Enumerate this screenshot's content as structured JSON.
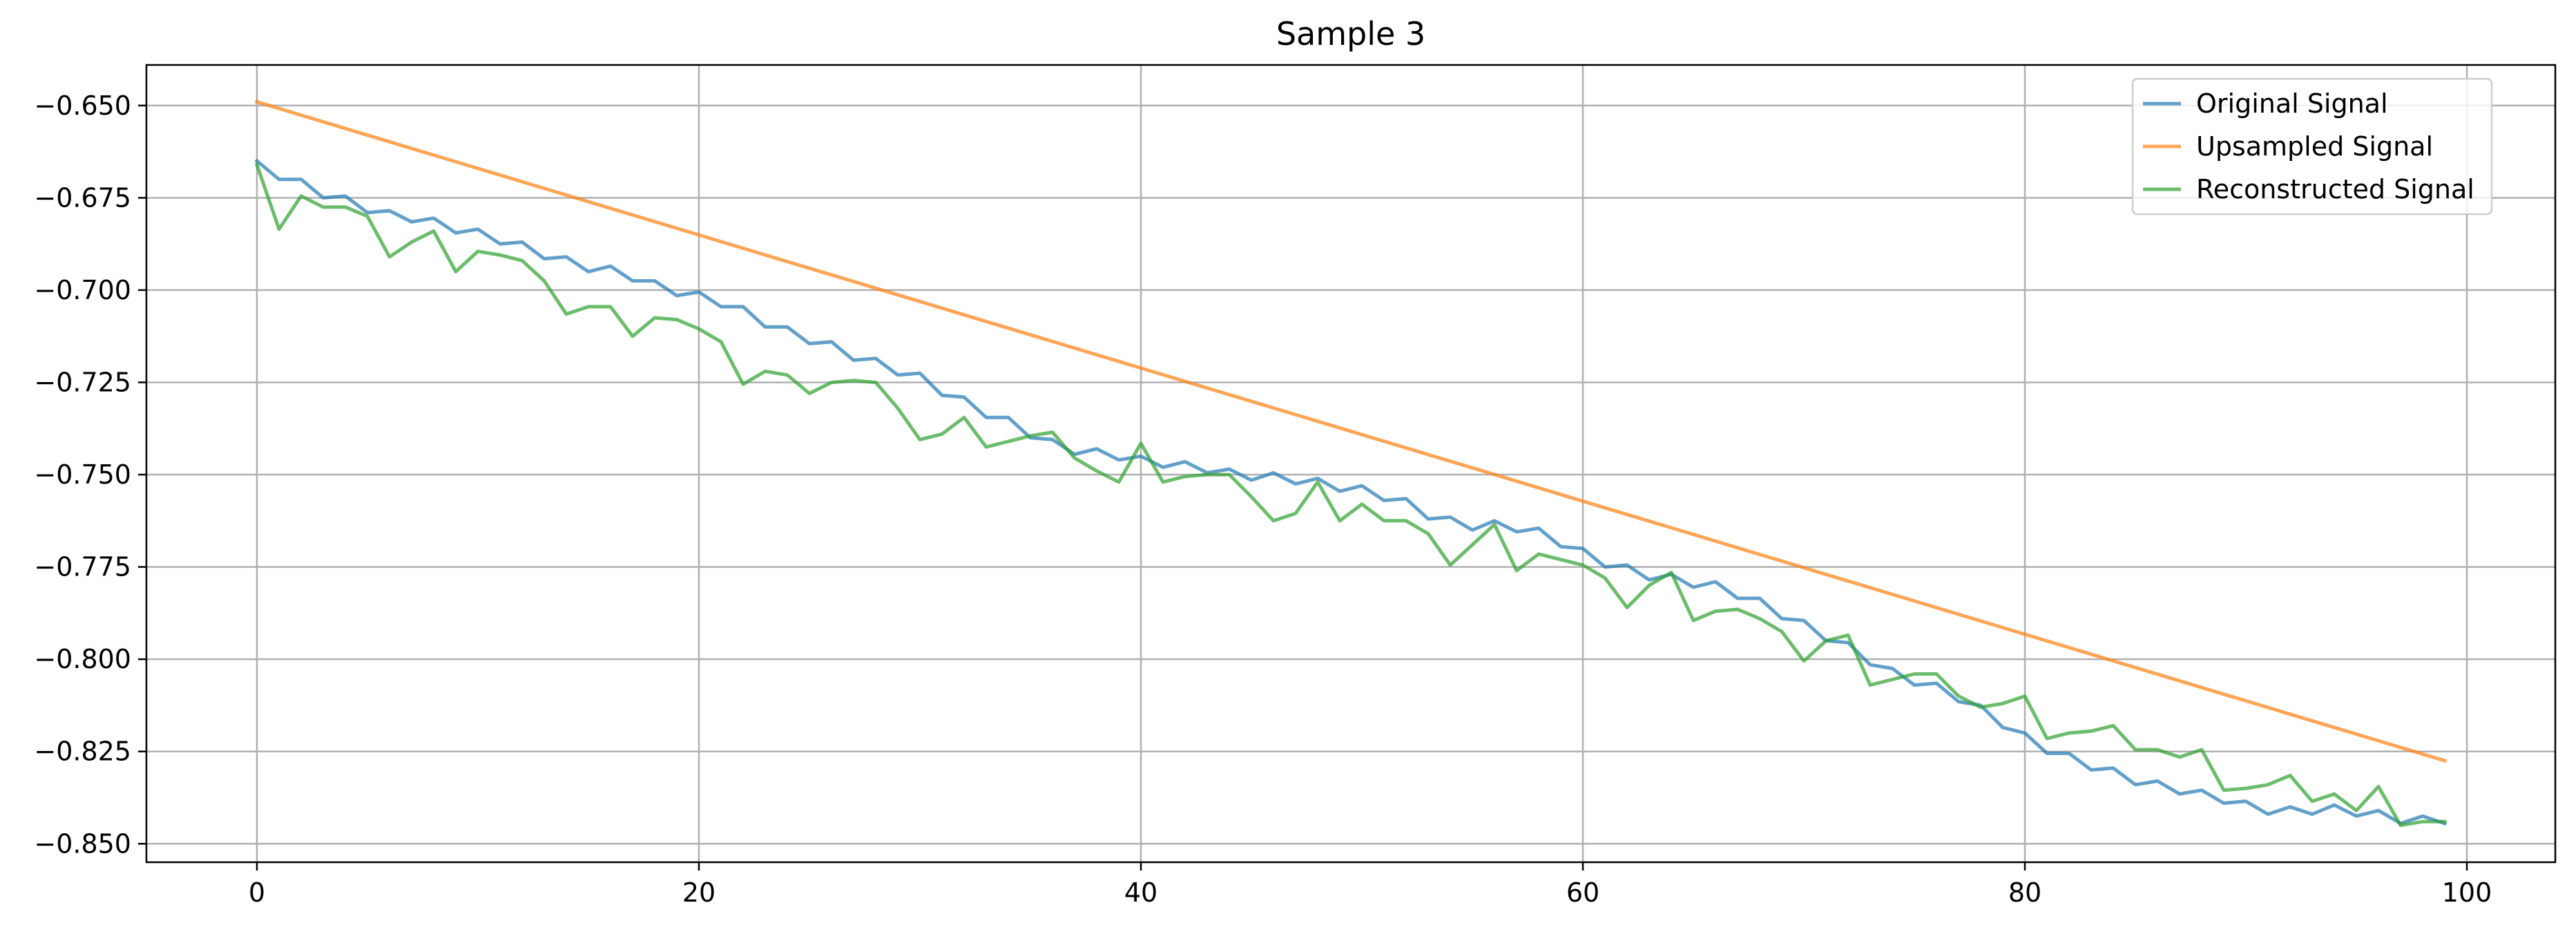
{
  "chart_data": {
    "type": "line",
    "title": "Sample 3",
    "xlabel": "",
    "ylabel": "",
    "xlim": [
      -5,
      104
    ],
    "ylim": [
      -0.855,
      -0.639
    ],
    "xticks": [
      0,
      20,
      40,
      60,
      80,
      100
    ],
    "yticks": [
      -0.65,
      -0.675,
      -0.7,
      -0.725,
      -0.75,
      -0.775,
      -0.8,
      -0.825,
      -0.85
    ],
    "xtick_labels": [
      "0",
      "20",
      "40",
      "60",
      "80",
      "100"
    ],
    "ytick_labels": [
      "−0.650",
      "−0.675",
      "−0.700",
      "−0.725",
      "−0.750",
      "−0.775",
      "−0.800",
      "−0.825",
      "−0.850"
    ],
    "grid": true,
    "legend_position": "top-right",
    "series": [
      {
        "name": "Original Signal",
        "color": "#1f77b4",
        "alpha": 0.7,
        "x": [
          0,
          1,
          2,
          3,
          4,
          5,
          6,
          7,
          8,
          9,
          10,
          11,
          12,
          13,
          14,
          15,
          16,
          17,
          18,
          19,
          20,
          21,
          22,
          23,
          24,
          25,
          26,
          27,
          28,
          29,
          30,
          31,
          32,
          33,
          34,
          35,
          36,
          37,
          38,
          39,
          40,
          41,
          42,
          43,
          44,
          45,
          46,
          47,
          48,
          49,
          50,
          51,
          52,
          53,
          54,
          55,
          56,
          57,
          58,
          59,
          60,
          61,
          62,
          63,
          64,
          65,
          66,
          67,
          68,
          69,
          70,
          71,
          72,
          73,
          74,
          75,
          76,
          77,
          78,
          79,
          80,
          81,
          82,
          83,
          84,
          85,
          86,
          87,
          88,
          89,
          90,
          91,
          92,
          93,
          94,
          95,
          96,
          97,
          98,
          99
        ],
        "values": [
          -0.665,
          -0.67,
          -0.67,
          -0.675,
          -0.6745,
          -0.679,
          -0.6785,
          -0.6815,
          -0.6805,
          -0.6845,
          -0.6835,
          -0.6875,
          -0.687,
          -0.6915,
          -0.691,
          -0.695,
          -0.6935,
          -0.6975,
          -0.6975,
          -0.7015,
          -0.7005,
          -0.7045,
          -0.7045,
          -0.71,
          -0.71,
          -0.7145,
          -0.714,
          -0.719,
          -0.7185,
          -0.723,
          -0.7225,
          -0.7285,
          -0.729,
          -0.7345,
          -0.7345,
          -0.74,
          -0.7405,
          -0.7445,
          -0.743,
          -0.746,
          -0.745,
          -0.748,
          -0.7465,
          -0.7495,
          -0.7485,
          -0.7515,
          -0.7495,
          -0.7525,
          -0.751,
          -0.7545,
          -0.753,
          -0.757,
          -0.7565,
          -0.762,
          -0.7615,
          -0.765,
          -0.7625,
          -0.7655,
          -0.7645,
          -0.7695,
          -0.77,
          -0.775,
          -0.7745,
          -0.7785,
          -0.777,
          -0.7805,
          -0.779,
          -0.7835,
          -0.7835,
          -0.789,
          -0.7895,
          -0.795,
          -0.7955,
          -0.8015,
          -0.8025,
          -0.807,
          -0.8065,
          -0.8115,
          -0.8125,
          -0.8185,
          -0.82,
          -0.8255,
          -0.8255,
          -0.83,
          -0.8295,
          -0.834,
          -0.833,
          -0.8365,
          -0.8355,
          -0.839,
          -0.8385,
          -0.842,
          -0.84,
          -0.842,
          -0.8395,
          -0.8425,
          -0.841,
          -0.8445,
          -0.8425,
          -0.8445
        ]
      },
      {
        "name": "Upsampled Signal",
        "color": "#ff7f0e",
        "alpha": 0.7,
        "x": [
          0,
          99
        ],
        "values": [
          -0.649,
          -0.8275
        ]
      },
      {
        "name": "Reconstructed Signal",
        "color": "#2ca02c",
        "alpha": 0.7,
        "x": [
          0,
          1,
          2,
          3,
          4,
          5,
          6,
          7,
          8,
          9,
          10,
          11,
          12,
          13,
          14,
          15,
          16,
          17,
          18,
          19,
          20,
          21,
          22,
          23,
          24,
          25,
          26,
          27,
          28,
          29,
          30,
          31,
          32,
          33,
          34,
          35,
          36,
          37,
          38,
          39,
          40,
          41,
          42,
          43,
          44,
          45,
          46,
          47,
          48,
          49,
          50,
          51,
          52,
          53,
          54,
          55,
          56,
          57,
          58,
          59,
          60,
          61,
          62,
          63,
          64,
          65,
          66,
          67,
          68,
          69,
          70,
          71,
          72,
          73,
          74,
          75,
          76,
          77,
          78,
          79,
          80,
          81,
          82,
          83,
          84,
          85,
          86,
          87,
          88,
          89,
          90,
          91,
          92,
          93,
          94,
          95,
          96,
          97,
          98,
          99
        ],
        "values": [
          -0.666,
          -0.6835,
          -0.6745,
          -0.6775,
          -0.6775,
          -0.68,
          -0.691,
          -0.687,
          -0.684,
          -0.695,
          -0.6895,
          -0.6905,
          -0.692,
          -0.6975,
          -0.7065,
          -0.7045,
          -0.7045,
          -0.7125,
          -0.7075,
          -0.708,
          -0.7105,
          -0.714,
          -0.7255,
          -0.722,
          -0.723,
          -0.728,
          -0.725,
          -0.7245,
          -0.725,
          -0.732,
          -0.7405,
          -0.739,
          -0.7345,
          -0.7425,
          -0.741,
          -0.7395,
          -0.7385,
          -0.7455,
          -0.749,
          -0.752,
          -0.7415,
          -0.752,
          -0.7505,
          -0.75,
          -0.75,
          -0.756,
          -0.7625,
          -0.7605,
          -0.752,
          -0.7625,
          -0.758,
          -0.7625,
          -0.7625,
          -0.766,
          -0.7745,
          -0.769,
          -0.7635,
          -0.776,
          -0.7715,
          -0.773,
          -0.7745,
          -0.778,
          -0.786,
          -0.78,
          -0.7765,
          -0.7895,
          -0.787,
          -0.7865,
          -0.789,
          -0.7925,
          -0.8005,
          -0.795,
          -0.7935,
          -0.807,
          -0.8055,
          -0.804,
          -0.804,
          -0.81,
          -0.813,
          -0.812,
          -0.81,
          -0.8215,
          -0.82,
          -0.8195,
          -0.818,
          -0.8245,
          -0.8245,
          -0.8265,
          -0.8245,
          -0.8355,
          -0.835,
          -0.834,
          -0.8315,
          -0.8385,
          -0.8365,
          -0.841,
          -0.8345,
          -0.845,
          -0.844,
          -0.844
        ]
      }
    ]
  }
}
